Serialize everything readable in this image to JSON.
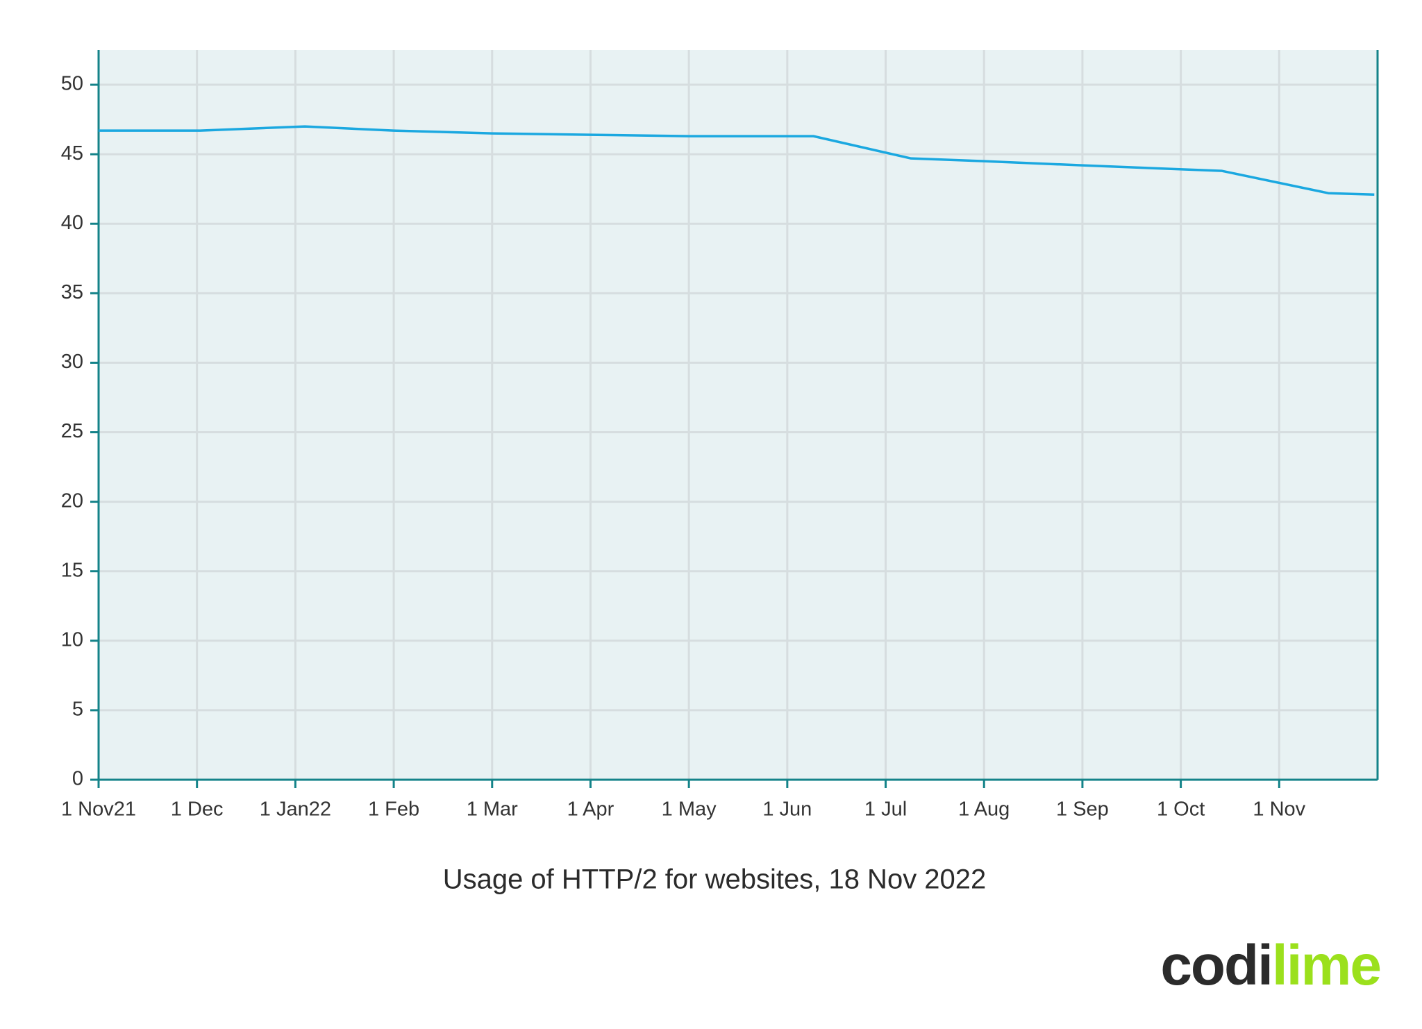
{
  "chart_data": {
    "type": "line",
    "title": "Usage of HTTP/2 for websites, 18 Nov 2022",
    "x": [
      "2021-11-01",
      "2021-12-02",
      "2022-01-04",
      "2022-02-01",
      "2022-03-01",
      "2022-04-01",
      "2022-05-01",
      "2022-06-01",
      "2022-06-09",
      "2022-07-09",
      "2022-08-01",
      "2022-09-01",
      "2022-10-14",
      "2022-11-16",
      "2022-11-30"
    ],
    "series": [
      {
        "name": "HTTP/2",
        "color": "#1ba8e0",
        "values": [
          46.7,
          46.7,
          47.0,
          46.7,
          46.5,
          46.4,
          46.3,
          46.3,
          46.3,
          44.7,
          44.5,
          44.2,
          43.8,
          42.2,
          42.1
        ]
      }
    ],
    "xlim": [
      "2021-11-01",
      "2022-12-01"
    ],
    "xticks": [
      {
        "value": "2021-11-01",
        "label": "1 Nov21"
      },
      {
        "value": "2021-12-01",
        "label": "1 Dec"
      },
      {
        "value": "2022-01-01",
        "label": "1 Jan22"
      },
      {
        "value": "2022-02-01",
        "label": "1 Feb"
      },
      {
        "value": "2022-03-01",
        "label": "1 Mar"
      },
      {
        "value": "2022-04-01",
        "label": "1 Apr"
      },
      {
        "value": "2022-05-01",
        "label": "1 May"
      },
      {
        "value": "2022-06-01",
        "label": "1 Jun"
      },
      {
        "value": "2022-07-01",
        "label": "1 Jul"
      },
      {
        "value": "2022-08-01",
        "label": "1 Aug"
      },
      {
        "value": "2022-09-01",
        "label": "1 Sep"
      },
      {
        "value": "2022-10-01",
        "label": "1 Oct"
      },
      {
        "value": "2022-11-01",
        "label": "1 Nov"
      }
    ],
    "ylim": [
      0,
      52.5
    ],
    "yticks": [
      0,
      5,
      10,
      15,
      20,
      25,
      30,
      35,
      40,
      45,
      50
    ],
    "grid": true
  },
  "logo": [
    "codi",
    "lime"
  ]
}
